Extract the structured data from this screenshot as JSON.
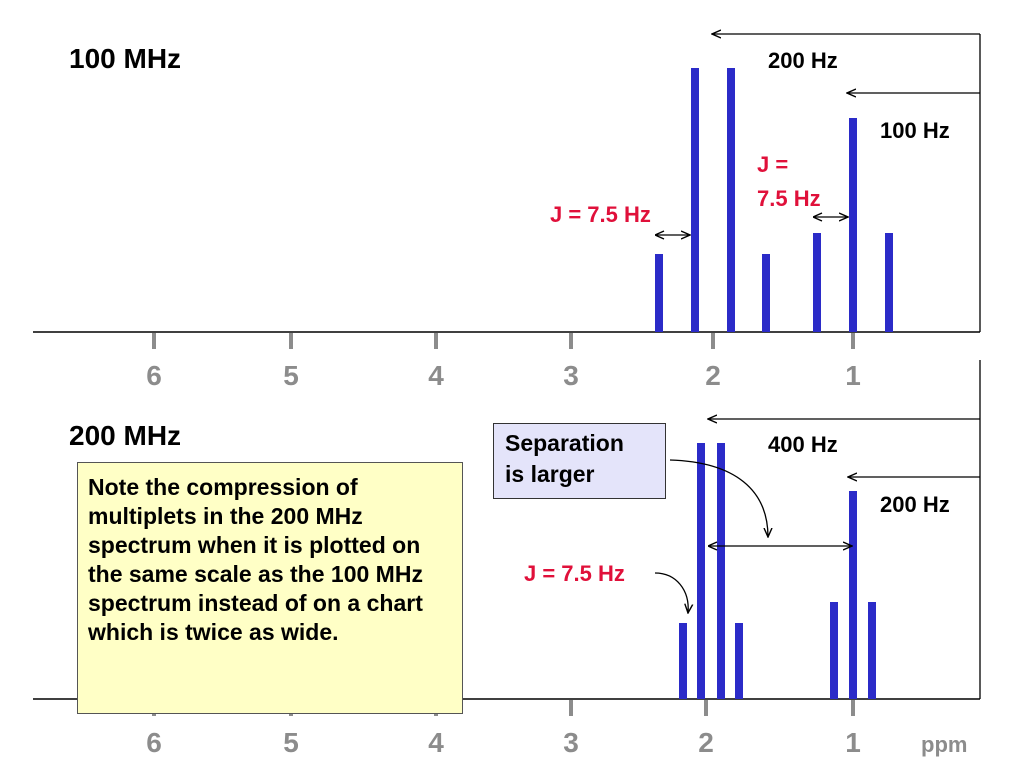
{
  "top_panel": {
    "title": "100 MHz",
    "ticks": [
      "6",
      "5",
      "4",
      "3",
      "2",
      "1"
    ],
    "label_200hz": "200 Hz",
    "label_100hz": "100 Hz",
    "j_left": "J = 7.5 Hz",
    "j_right_line1": "J =",
    "j_right_line2": "7.5 Hz"
  },
  "bottom_panel": {
    "title": "200 MHz",
    "ticks": [
      "6",
      "5",
      "4",
      "3",
      "2",
      "1"
    ],
    "label_400hz": "400 Hz",
    "label_200hz": "200 Hz",
    "j_label": "J = 7.5 Hz",
    "separation_line1": "Separation",
    "separation_line2": "is larger",
    "note": "Note the compression of multiplets in the 200 MHz spectrum when it is plotted on the same scale as the 100 MHz spectrum instead of on a chart which is twice as wide.",
    "axis_unit": "ppm"
  },
  "colors": {
    "peak": "#2b2bc8",
    "j_text": "#e0103a",
    "tick": "#8c8c8c",
    "note_bg": "#ffffc6",
    "separation_bg": "#e4e4fa"
  }
}
